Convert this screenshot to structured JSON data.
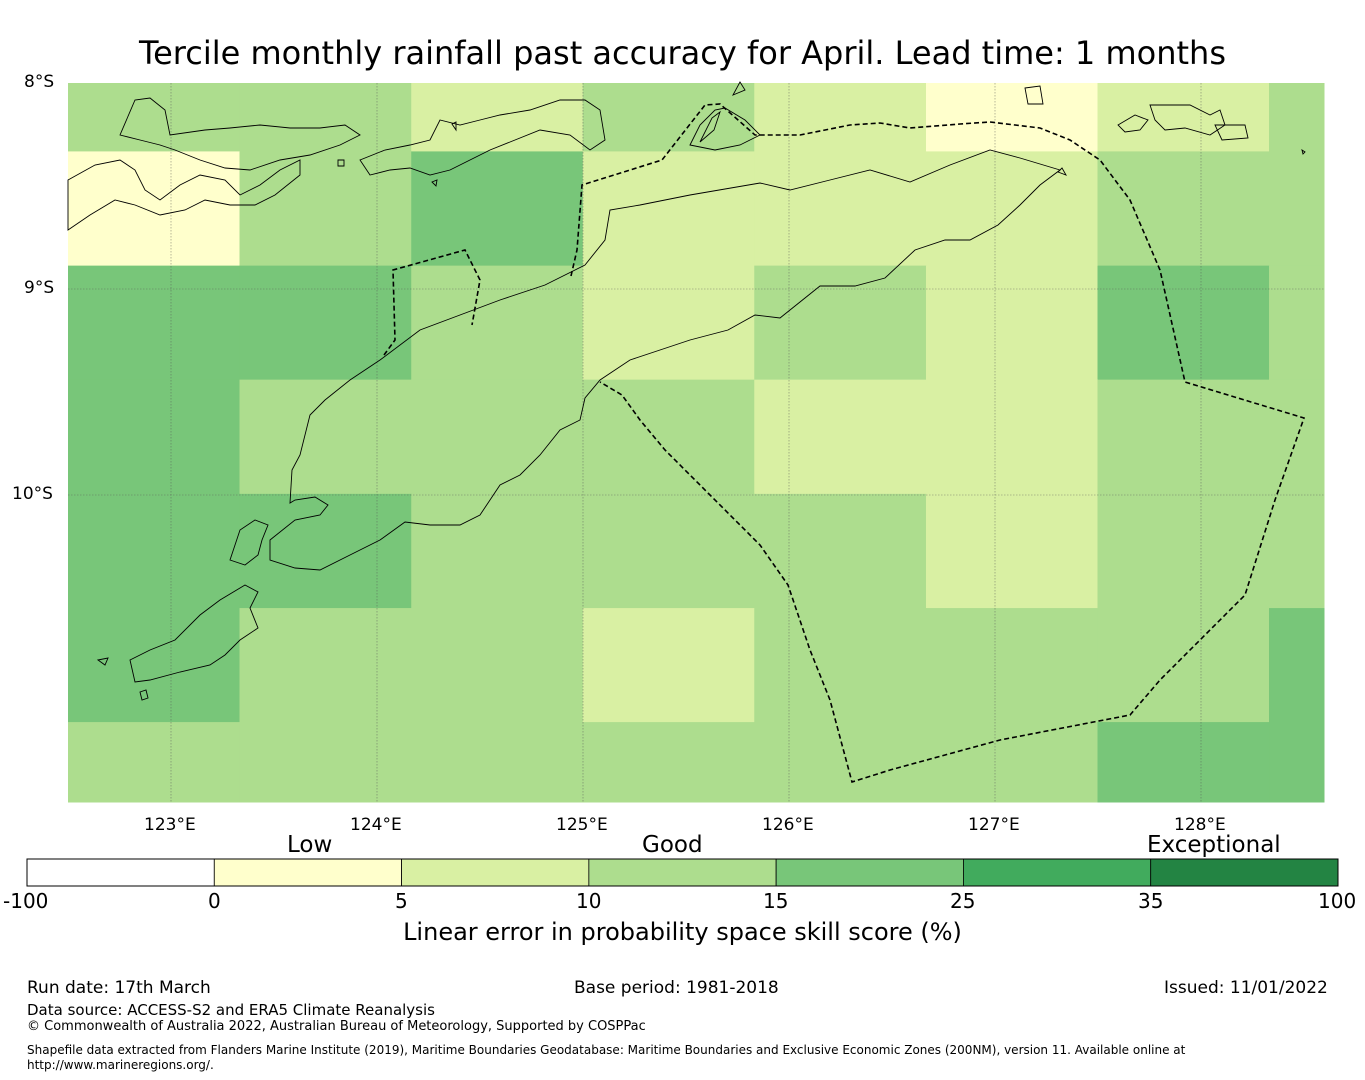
{
  "title": "Tercile monthly rainfall past accuracy for April. Lead time: 1 months",
  "map": {
    "lat_labels": [
      "8°S",
      "9°S",
      "10°S"
    ],
    "lon_labels": [
      "123°E",
      "124°E",
      "125°E",
      "126°E",
      "127°E",
      "128°E"
    ],
    "extent": {
      "lon_min": 122.5,
      "lon_max": 128.6,
      "lat_min": -11.5,
      "lat_max": -8.0
    },
    "grid_lon": [
      122.5,
      123.333,
      124.167,
      125.0,
      125.833,
      126.667,
      127.5,
      128.333,
      128.6
    ],
    "grid_lat": [
      -8.0,
      -8.333,
      -8.889,
      -9.444,
      -10.0,
      -10.556,
      -11.111,
      -11.5
    ],
    "cells": [
      [
        12,
        12,
        7,
        12,
        7,
        2,
        7,
        12
      ],
      [
        2,
        12,
        20,
        7,
        7,
        7,
        12,
        12
      ],
      [
        20,
        20,
        12,
        7,
        12,
        7,
        20,
        12
      ],
      [
        20,
        12,
        12,
        12,
        7,
        7,
        12,
        12
      ],
      [
        20,
        20,
        12,
        12,
        12,
        7,
        12,
        12
      ],
      [
        20,
        12,
        12,
        7,
        12,
        12,
        12,
        20
      ],
      [
        12,
        12,
        12,
        12,
        12,
        12,
        20,
        20
      ]
    ],
    "colors": {
      "low": "#ffffcc",
      "mid": "#d9f0a3",
      "good": "#addd8e",
      "better": "#78c679",
      "high": "#41ab5d",
      "top": "#238443"
    }
  },
  "colorbar": {
    "ticks": [
      "-100",
      "0",
      "5",
      "10",
      "15",
      "25",
      "35",
      "100"
    ],
    "bins": [
      -100,
      0,
      5,
      10,
      15,
      25,
      35,
      100
    ],
    "colors": [
      "#ffffff",
      "#ffffcc",
      "#d9f0a3",
      "#addd8e",
      "#78c679",
      "#41ab5d",
      "#238443"
    ],
    "categories": [
      "Low",
      "Good",
      "Exceptional"
    ],
    "label": "Linear error in probability space skill score (%)"
  },
  "footer": {
    "run_date": "Run date: 17th March",
    "base_period": "Base period: 1981-2018",
    "issued": "Issued: 11/01/2022",
    "data_source": "Data source: ACCESS-S2 and ERA5 Climate Reanalysis",
    "copyright": "© Commonwealth of Australia 2022, Australian Bureau of Meteorology, Supported by COSPPac",
    "shapefile_1": "Shapefile data extracted from Flanders Marine Institute (2019), Maritime Boundaries Geodatabase: Maritime Boundaries and Exclusive Economic Zones (200NM), version 11. Available online at",
    "shapefile_2": "http://www.marineregions.org/."
  }
}
